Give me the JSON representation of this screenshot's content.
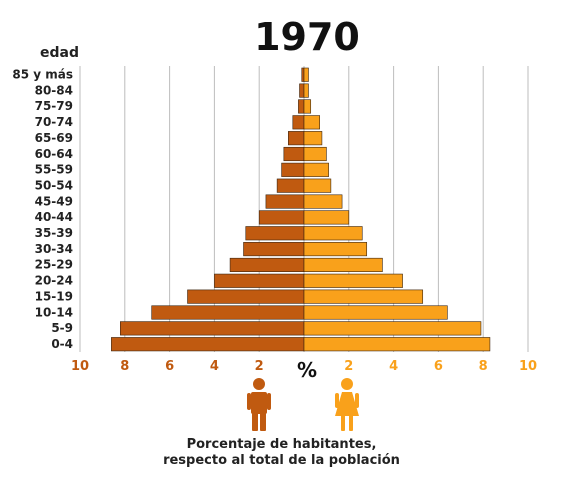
{
  "chart_data": {
    "type": "bar",
    "title": "1970",
    "ylabel": "edad",
    "xlabel": "%",
    "xlim": [
      0,
      10
    ],
    "x_ticks": [
      "10",
      "8",
      "6",
      "4",
      "2",
      "2",
      "4",
      "6",
      "8",
      "10"
    ],
    "grid": true,
    "orientation": "horizontal-population-pyramid",
    "categories": [
      "85 y más",
      "80-84",
      "75-79",
      "70-74",
      "65-69",
      "60-64",
      "55-59",
      "50-54",
      "45-49",
      "40-44",
      "35-39",
      "30-34",
      "25-29",
      "20-24",
      "15-19",
      "10-14",
      "5-9",
      "0-4"
    ],
    "series": [
      {
        "values": [
          0.1,
          0.2,
          0.25,
          0.5,
          0.7,
          0.9,
          1.0,
          1.2,
          1.7,
          2.0,
          2.6,
          2.7,
          3.3,
          4.0,
          5.2,
          6.8,
          8.2,
          8.6
        ],
        "color": "#c05a10"
      },
      {
        "values": [
          0.2,
          0.2,
          0.3,
          0.7,
          0.8,
          1.0,
          1.1,
          1.2,
          1.7,
          2.0,
          2.6,
          2.8,
          3.5,
          4.4,
          5.3,
          6.4,
          7.9,
          8.3
        ],
        "color": "#f9a11b"
      }
    ],
    "caption_lines": [
      "Porcentaje de habitantes,",
      "respecto al total de la población"
    ]
  },
  "colors": {
    "male_bar": "#c05a10",
    "female_bar": "#f9a11b",
    "male_icon": "#c05a10",
    "female_icon": "#f9a11b",
    "left_ticks": "#c05a10",
    "right_ticks": "#f9a11b",
    "grid": "#bdbdbd"
  },
  "icons": {
    "male": "male-person-icon",
    "female": "female-person-icon"
  }
}
